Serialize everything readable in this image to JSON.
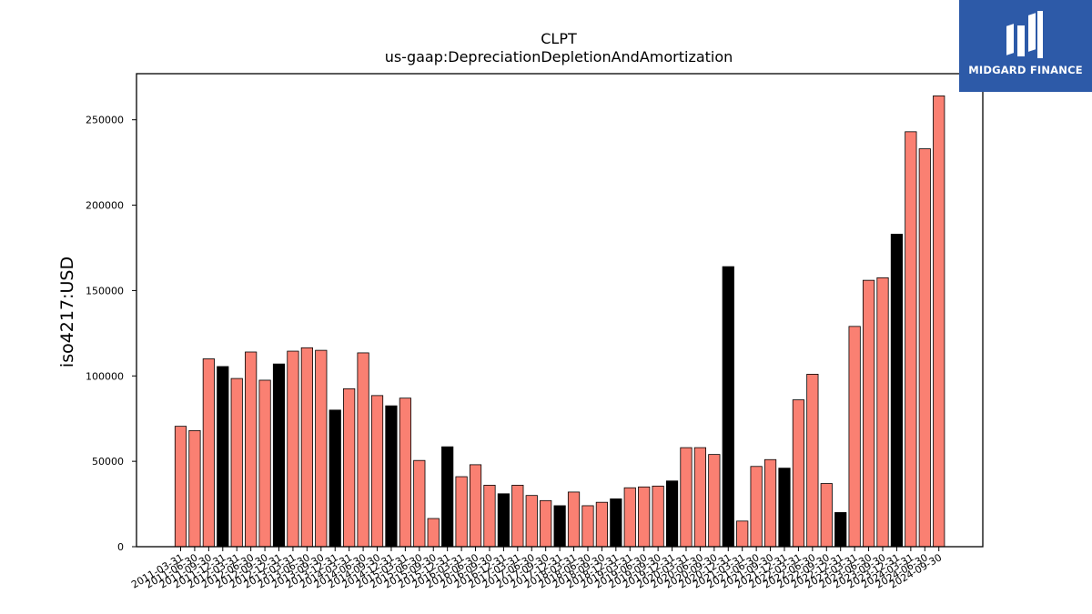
{
  "brand": {
    "name": "MIDGARD FINANCE"
  },
  "colors": {
    "bar_default": "#fa8072",
    "bar_highlight": "#000000",
    "edge": "#000000",
    "logo_bg": "#2d5aa8"
  },
  "chart_data": {
    "type": "bar",
    "title": "CLPT",
    "subtitle": "us-gaap:DepreciationDepletionAndAmortization",
    "xlabel": "",
    "ylabel": "iso4217:USD",
    "ylim": [
      0,
      277000
    ],
    "yticks": [
      0,
      50000,
      100000,
      150000,
      200000,
      250000
    ],
    "grid": false,
    "categories": [
      "2011-03-31",
      "2011-06-30",
      "2011-09-30",
      "2011-12-31",
      "2012-03-31",
      "2012-06-30",
      "2012-09-30",
      "2012-12-31",
      "2013-03-31",
      "2013-06-30",
      "2013-09-30",
      "2013-12-31",
      "2014-03-31",
      "2014-06-30",
      "2014-09-30",
      "2014-12-31",
      "2015-03-31",
      "2015-06-30",
      "2015-09-30",
      "2015-12-31",
      "2016-03-31",
      "2016-06-30",
      "2016-09-30",
      "2016-12-31",
      "2017-03-31",
      "2017-06-30",
      "2017-09-30",
      "2017-12-31",
      "2018-03-31",
      "2018-06-30",
      "2018-09-30",
      "2018-12-31",
      "2019-03-31",
      "2019-06-30",
      "2019-09-30",
      "2019-12-31",
      "2020-03-31",
      "2020-06-30",
      "2020-09-30",
      "2020-12-31",
      "2021-03-31",
      "2021-06-30",
      "2021-09-30",
      "2021-12-31",
      "2022-03-31",
      "2022-06-30",
      "2022-09-30",
      "2022-12-31",
      "2023-03-31",
      "2023-06-30",
      "2023-09-30",
      "2023-12-31",
      "2024-03-31",
      "2024-06-30",
      "2024-09-30"
    ],
    "values": [
      70500,
      68000,
      110000,
      105500,
      98500,
      114000,
      97500,
      107000,
      114500,
      116500,
      115000,
      80000,
      92500,
      113500,
      88500,
      82500,
      87000,
      50500,
      16500,
      58500,
      41000,
      48000,
      36000,
      31000,
      36000,
      30000,
      27000,
      24000,
      32000,
      24000,
      26000,
      28000,
      34500,
      35000,
      35500,
      38500,
      58000,
      58000,
      54000,
      164000,
      15000,
      47000,
      51000,
      46000,
      86000,
      101000,
      37000,
      20000,
      129000,
      156000,
      157500,
      183000,
      243000,
      233000,
      264000
    ],
    "highlight": [
      false,
      false,
      false,
      true,
      false,
      false,
      false,
      true,
      false,
      false,
      false,
      true,
      false,
      false,
      false,
      true,
      false,
      false,
      false,
      true,
      false,
      false,
      false,
      true,
      false,
      false,
      false,
      true,
      false,
      false,
      false,
      true,
      false,
      false,
      false,
      true,
      false,
      false,
      false,
      true,
      false,
      false,
      false,
      true,
      false,
      false,
      false,
      true,
      false,
      false,
      false,
      true,
      false,
      false,
      false
    ]
  }
}
